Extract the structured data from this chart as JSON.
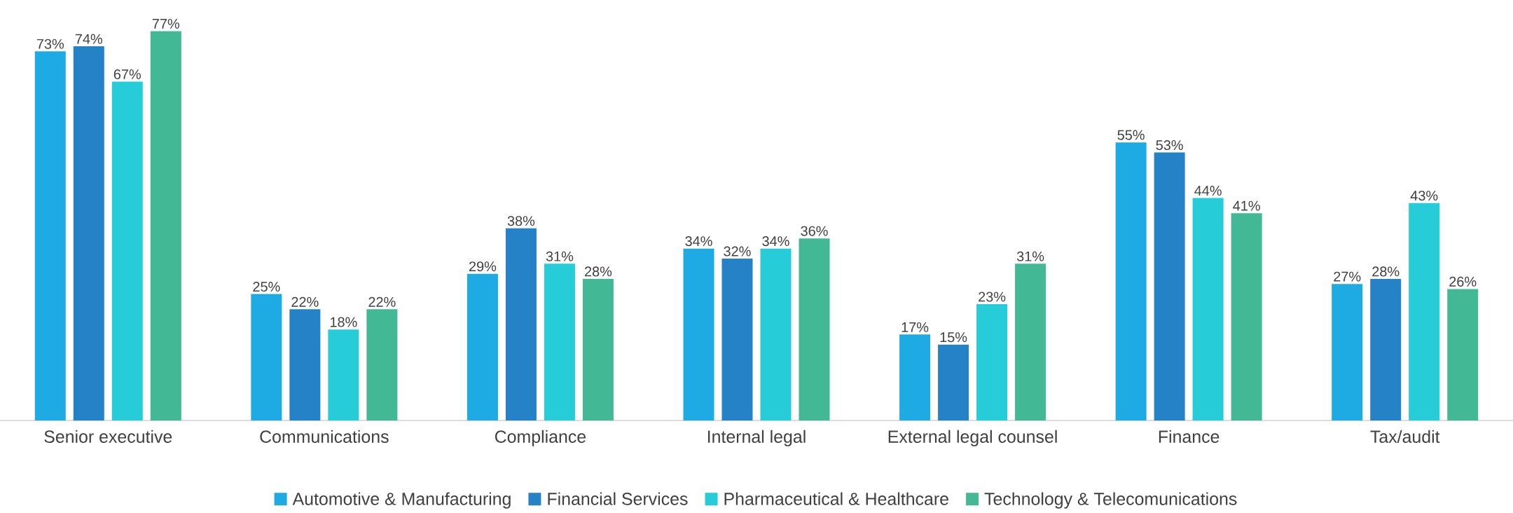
{
  "chart_data": {
    "type": "bar",
    "categories": [
      "Senior executive",
      "Communications",
      "Compliance",
      "Internal legal",
      "External legal counsel",
      "Finance",
      "Tax/audit"
    ],
    "series": [
      {
        "name": "Automotive & Manufacturing",
        "color": "#1eaae2",
        "values": [
          73,
          25,
          29,
          34,
          17,
          55,
          27
        ],
        "value_labels": [
          "73%",
          "25%",
          "29%",
          "34%",
          "17%",
          "55%",
          "27%"
        ]
      },
      {
        "name": "Financial Services",
        "color": "#2582c6",
        "values": [
          74,
          22,
          38,
          32,
          15,
          53,
          28
        ],
        "value_labels": [
          "74%",
          "22%",
          "38%",
          "32%",
          "15%",
          "53%",
          "28%"
        ]
      },
      {
        "name": "Pharmaceutical & Healthcare",
        "color": "#26ccd8",
        "values": [
          67,
          18,
          31,
          34,
          23,
          44,
          43
        ],
        "value_labels": [
          "67%",
          "18%",
          "31%",
          "34%",
          "23%",
          "44%",
          "43%"
        ]
      },
      {
        "name": "Technology  & Telecomunications",
        "color": "#42b994",
        "values": [
          77,
          22,
          28,
          36,
          31,
          41,
          26
        ],
        "value_labels": [
          "77%",
          "22%",
          "28%",
          "36%",
          "31%",
          "41%",
          "26%"
        ]
      }
    ],
    "legend": "bottom"
  }
}
